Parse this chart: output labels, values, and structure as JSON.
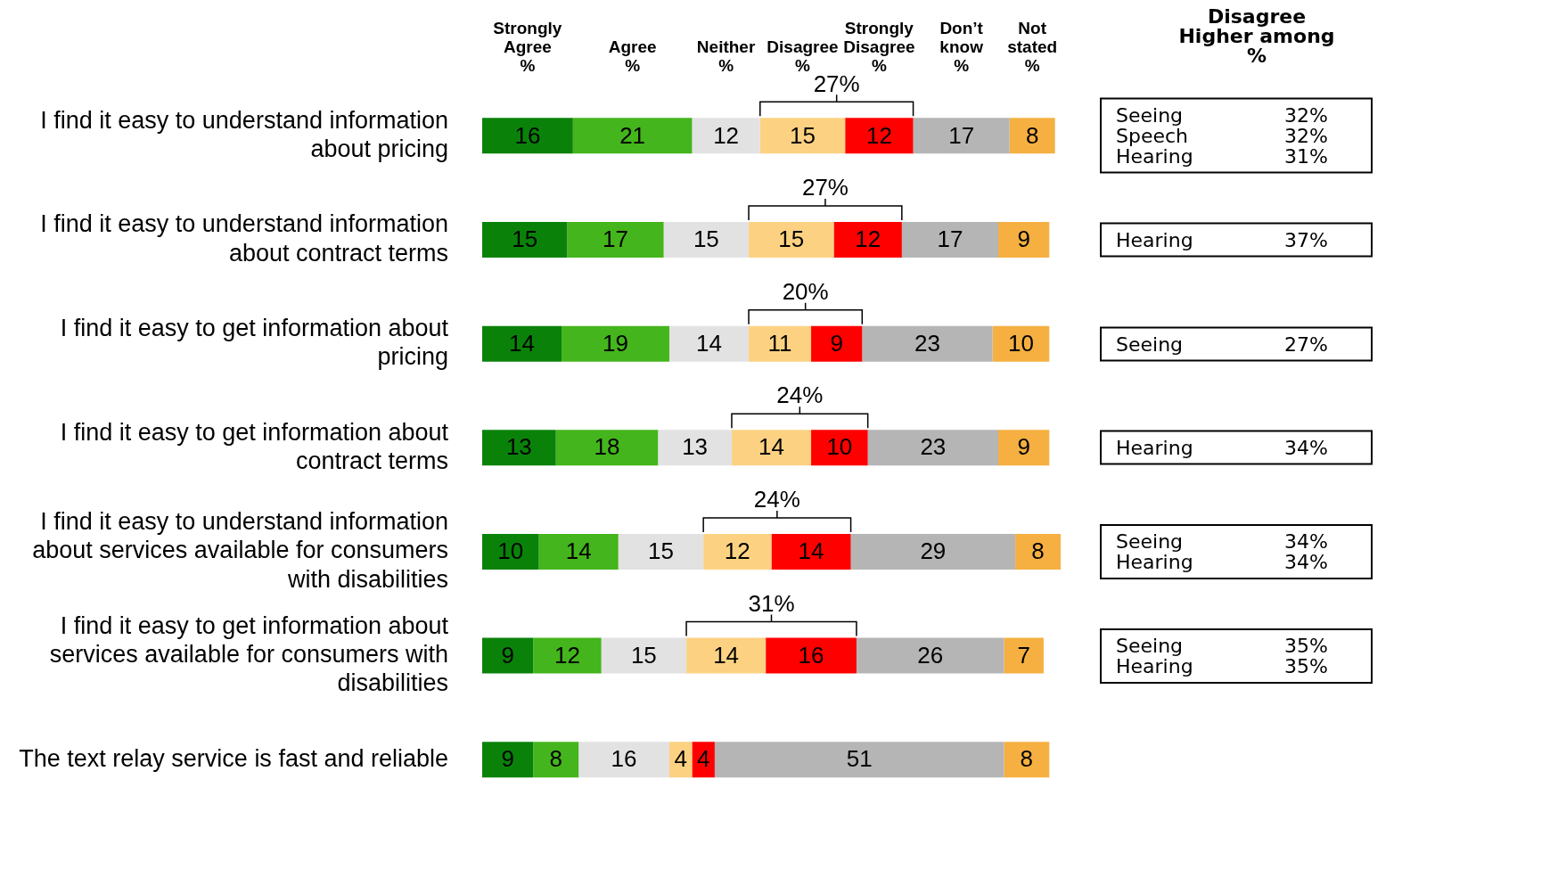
{
  "chart_data": [
    {
      "type": "bar",
      "orientation": "horizontal",
      "stacked": true,
      "data_labels": true,
      "legend": false,
      "grid": false,
      "tick_labels": "y",
      "xlim": [
        0,
        102
      ],
      "categories": [
        "I find it easy to understand information about pricing",
        "I find it easy to understand information about contract terms",
        "I find it easy to get information about pricing",
        "I find it easy to get information about contract terms",
        "I find it easy to understand information about services available for consumers with disabilities",
        "I find it easy to get information about services available for consumers with disabilities",
        "The text relay service is fast and reliable"
      ],
      "series": [
        {
          "name": "Strongly Agree %",
          "color": "#0a820a",
          "values": [
            16,
            15,
            14,
            13,
            10,
            9,
            9
          ]
        },
        {
          "name": "Agree %",
          "color": "#44b51c",
          "values": [
            21,
            17,
            19,
            18,
            14,
            12,
            8
          ]
        },
        {
          "name": "Neither %",
          "color": "#e2e2e2",
          "values": [
            12,
            15,
            14,
            13,
            15,
            15,
            16
          ]
        },
        {
          "name": "Disagree %",
          "color": "#fcd282",
          "values": [
            15,
            15,
            11,
            14,
            12,
            14,
            4
          ]
        },
        {
          "name": "Strongly Disagree %",
          "color": "#ff0000",
          "values": [
            12,
            12,
            9,
            10,
            14,
            16,
            4
          ]
        },
        {
          "name": "Don’t know %",
          "color": "#b5b5b5",
          "values": [
            17,
            17,
            23,
            23,
            29,
            26,
            51
          ]
        },
        {
          "name": "Not stated %",
          "color": "#f5b041",
          "values": [
            8,
            9,
            10,
            9,
            8,
            7,
            8
          ]
        }
      ],
      "annotations": [
        "27%",
        "27%",
        "20%",
        "24%",
        "24%",
        "31%"
      ]
    },
    {
      "type": "other",
      "title": "Disagree\nHigher among\n%",
      "annotations": [
        "Seeing 32%\nSpeech 32%\nHearing 31%",
        "Hearing 37%",
        "Seeing 27%",
        "Hearing 34%",
        "Seeing 34%\nHearing 34%",
        "Seeing 35%\nHearing 35%"
      ]
    }
  ]
}
